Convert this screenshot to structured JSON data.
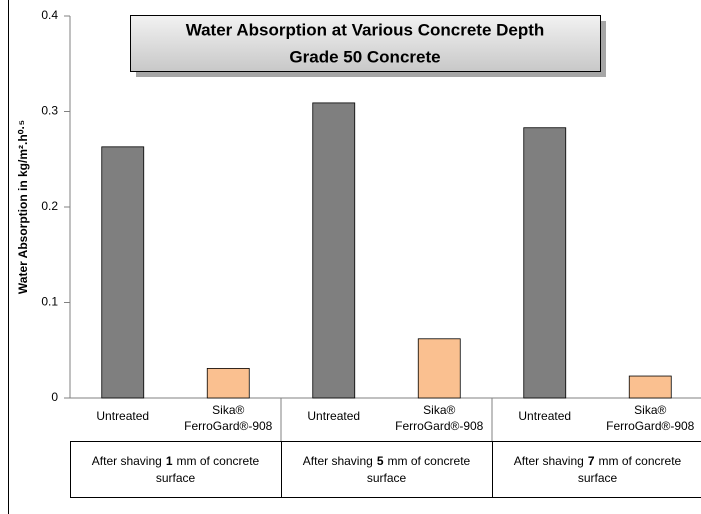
{
  "chart_data": {
    "type": "bar",
    "title": "Water Absorption at Various Concrete Depth",
    "subtitle": "Grade 50 Concrete",
    "y_label": "Water Absorption in kg/m².h⁰·⁵",
    "categories": [
      "Untreated",
      "Sika® FerroGard®-908",
      "Untreated",
      "Sika® FerroGard®-908",
      "Untreated",
      "Sika® FerroGard®-908"
    ],
    "values": [
      0.263,
      0.031,
      0.309,
      0.062,
      0.283,
      0.023
    ],
    "colors": [
      "#7f7f7f",
      "#fac090",
      "#7f7f7f",
      "#fac090",
      "#7f7f7f",
      "#fac090"
    ],
    "groups": [
      {
        "lead": "After shaving",
        "depth": 1,
        "rest": "mm of concrete",
        "end": "surface"
      },
      {
        "lead": "After shaving",
        "depth": 5,
        "rest": "mm of concrete",
        "end": "surface"
      },
      {
        "lead": "After shaving",
        "depth": 7,
        "rest": "mm of concrete",
        "end": "surface"
      }
    ],
    "ylim": [
      0,
      0.4
    ],
    "yticks": [
      0,
      0.1,
      0.2,
      0.3,
      0.4
    ],
    "grid": false
  }
}
